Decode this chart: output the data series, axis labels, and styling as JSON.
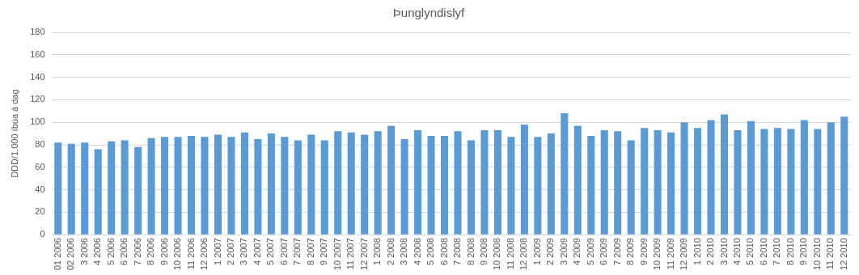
{
  "chart_data": {
    "type": "bar",
    "title": "Þunglyndislyf",
    "ylabel": "DDD/1.000 íbúa á dag",
    "categories": [
      "01 2006",
      "02 2006",
      "3 2006",
      "4 2006",
      "5 2006",
      "6 2006",
      "7 2006",
      "8 2006",
      "9 2006",
      "10 2006",
      "11 2006",
      "12 2006",
      "1 2007",
      "2 2007",
      "3 2007",
      "4 2007",
      "5 2007",
      "6 2007",
      "7 2007",
      "8 2007",
      "9 2007",
      "10 2007",
      "11 2007",
      "12 2007",
      "1 2008",
      "2 2008",
      "3 2008",
      "4 2008",
      "5 2008",
      "6 2008",
      "7 2008",
      "8 2008",
      "9 2008",
      "10 2008",
      "11 2008",
      "12 2008",
      "1 2009",
      "2 2009",
      "3 2009",
      "4 2009",
      "5 2009",
      "6 2009",
      "7 2009",
      "8 2009",
      "9 2009",
      "10 2009",
      "11 2009",
      "12 2009",
      "1 2010",
      "2 2010",
      "3 2010",
      "4 2010",
      "5 2010",
      "6 2010",
      "7 2010",
      "8 2010",
      "9 2010",
      "10 2010",
      "11 2010",
      "12 2010"
    ],
    "values": [
      82,
      81,
      82,
      76,
      83,
      84,
      78,
      86,
      87,
      87,
      88,
      87,
      89,
      87,
      91,
      85,
      90,
      87,
      84,
      89,
      84,
      92,
      91,
      89,
      92,
      97,
      85,
      93,
      88,
      88,
      92,
      84,
      93,
      93,
      87,
      98,
      87,
      90,
      108,
      97,
      88,
      93,
      92,
      84,
      95,
      93,
      91,
      100,
      95,
      102,
      107,
      93,
      101,
      94,
      95,
      94,
      102,
      94,
      100,
      105
    ],
    "color": "#5b9bd5",
    "ylim": [
      0,
      180
    ],
    "yticks": [
      0,
      20,
      40,
      60,
      80,
      100,
      120,
      140,
      160,
      180
    ],
    "grid": "y"
  }
}
